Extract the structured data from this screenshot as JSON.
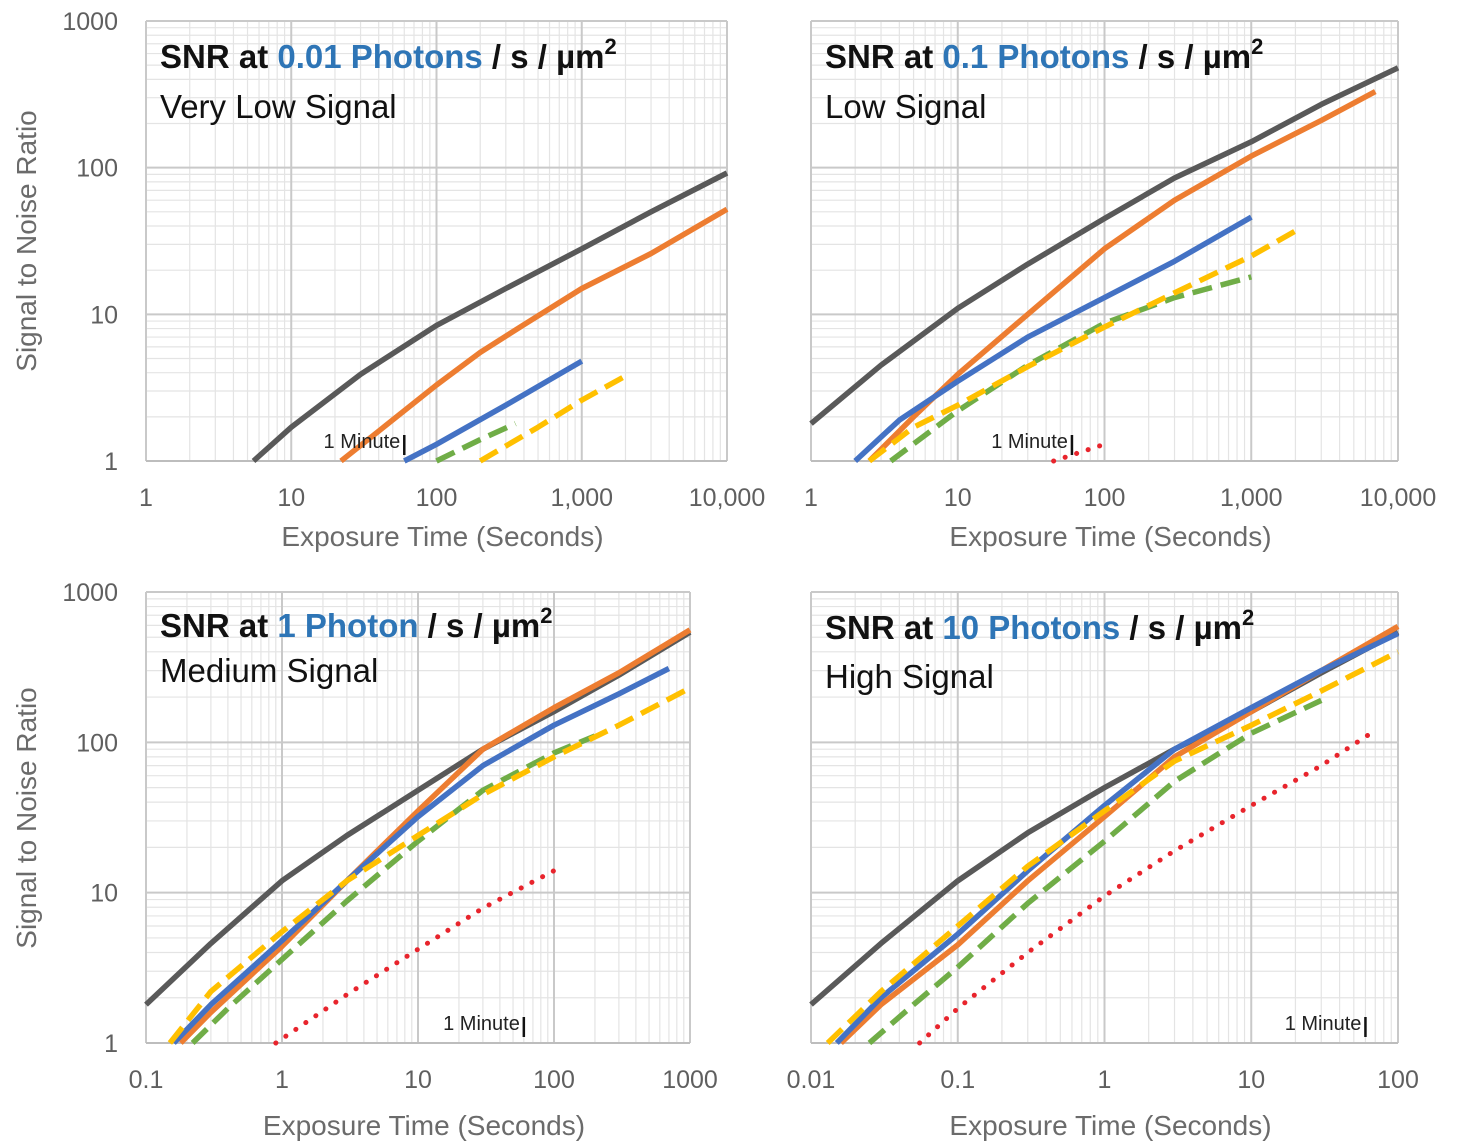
{
  "chart_data": [
    {
      "type": "line",
      "title": {
        "prefix": "SNR at ",
        "highlight": "0.01 Photons",
        "suffix": " / s / µm",
        "sup": "2"
      },
      "subtitle": "Very Low Signal",
      "xlabel": "Exposure Time (Seconds)",
      "ylabel": "Signal to Noise Ratio",
      "x_scale": "log",
      "y_scale": "log",
      "xlim": [
        1,
        10000
      ],
      "ylim": [
        1,
        1000
      ],
      "x_ticks": [
        1,
        10,
        100,
        1000,
        10000
      ],
      "x_tick_labels": [
        "1",
        "10",
        "100",
        "1,000",
        "10,000"
      ],
      "y_ticks": [
        1,
        10,
        100,
        1000
      ],
      "y_tick_labels": [
        "1",
        "10",
        "100",
        "1000"
      ],
      "grid": true,
      "annotation": {
        "label": "1 Minute",
        "x": 60
      },
      "series": [
        {
          "color": "#595959",
          "style": "solid",
          "x": [
            5.5,
            10,
            30,
            100,
            300,
            1000,
            3000,
            10000
          ],
          "y": [
            1,
            1.7,
            3.9,
            8.4,
            15,
            28,
            50,
            92
          ]
        },
        {
          "color": "#ed7d31",
          "style": "solid",
          "x": [
            22,
            40,
            100,
            200,
            400,
            1000,
            3000,
            10000
          ],
          "y": [
            1,
            1.6,
            3.3,
            5.5,
            8.5,
            15,
            26,
            52
          ]
        },
        {
          "color": "#4472c4",
          "style": "solid",
          "x": [
            60,
            100,
            300,
            1000
          ],
          "y": [
            1,
            1.3,
            2.4,
            4.8
          ]
        },
        {
          "color": "#70ad47",
          "style": "dashed",
          "x": [
            100,
            200,
            350
          ],
          "y": [
            1,
            1.4,
            1.8
          ]
        },
        {
          "color": "#ffc000",
          "style": "dashed",
          "x": [
            200,
            500,
            1000,
            2000
          ],
          "y": [
            1,
            1.7,
            2.6,
            3.8
          ]
        }
      ]
    },
    {
      "type": "line",
      "title": {
        "prefix": "SNR at ",
        "highlight": "0.1 Photons",
        "suffix": " / s / µm",
        "sup": "2"
      },
      "subtitle": "Low Signal",
      "xlabel": "Exposure Time (Seconds)",
      "ylabel": "",
      "x_scale": "log",
      "y_scale": "log",
      "xlim": [
        1,
        10000
      ],
      "ylim": [
        1,
        1000
      ],
      "x_ticks": [
        1,
        10,
        100,
        1000,
        10000
      ],
      "x_tick_labels": [
        "1",
        "10",
        "100",
        "1,000",
        "10,000"
      ],
      "y_ticks": [
        1,
        10,
        100,
        1000
      ],
      "y_tick_labels": [],
      "grid": true,
      "annotation": {
        "label": "1 Minute",
        "x": 60
      },
      "series": [
        {
          "color": "#595959",
          "style": "solid",
          "x": [
            1,
            3,
            10,
            30,
            100,
            300,
            1000,
            3000,
            10000
          ],
          "y": [
            1.8,
            4.5,
            11,
            22,
            45,
            85,
            150,
            270,
            480
          ]
        },
        {
          "color": "#ed7d31",
          "style": "solid",
          "x": [
            2.5,
            5,
            10,
            30,
            100,
            300,
            1000,
            3000,
            7000
          ],
          "y": [
            1,
            2,
            3.9,
            10,
            28,
            60,
            120,
            210,
            330
          ]
        },
        {
          "color": "#4472c4",
          "style": "solid",
          "x": [
            2,
            4,
            10,
            30,
            100,
            300,
            1000
          ],
          "y": [
            1,
            1.9,
            3.5,
            7,
            13,
            23,
            46
          ]
        },
        {
          "color": "#70ad47",
          "style": "dashed",
          "x": [
            3.5,
            6,
            10,
            30,
            100,
            300,
            1000
          ],
          "y": [
            1,
            1.5,
            2.2,
            4.5,
            8.7,
            13,
            18
          ]
        },
        {
          "color": "#ffc000",
          "style": "dashed",
          "x": [
            2.5,
            5,
            10,
            30,
            100,
            300,
            1000,
            2000
          ],
          "y": [
            1,
            1.7,
            2.4,
            4.4,
            8.2,
            14,
            25,
            37
          ]
        },
        {
          "color": "#e8242c",
          "style": "dotted",
          "x": [
            45,
            100
          ],
          "y": [
            1,
            1.3
          ]
        }
      ]
    },
    {
      "type": "line",
      "title": {
        "prefix": "SNR at ",
        "highlight": "1 Photon",
        "suffix": " / s / µm",
        "sup": "2"
      },
      "subtitle": "Medium Signal",
      "xlabel": "Exposure Time (Seconds)",
      "ylabel": "Signal to Noise Ratio",
      "x_scale": "log",
      "y_scale": "log",
      "xlim": [
        0.1,
        1000
      ],
      "ylim": [
        1,
        1000
      ],
      "x_ticks": [
        0.1,
        1,
        10,
        100,
        1000
      ],
      "x_tick_labels": [
        "0.1",
        "1",
        "10",
        "100",
        "1000"
      ],
      "y_ticks": [
        1,
        10,
        100,
        1000
      ],
      "y_tick_labels": [
        "1",
        "10",
        "100",
        "1000"
      ],
      "grid": true,
      "annotation": {
        "label": "1 Minute",
        "x": 60
      },
      "series": [
        {
          "color": "#595959",
          "style": "solid",
          "x": [
            0.1,
            0.3,
            1,
            3,
            10,
            30,
            100,
            300,
            1000
          ],
          "y": [
            1.8,
            4.6,
            12,
            24,
            48,
            90,
            160,
            280,
            540
          ]
        },
        {
          "color": "#ed7d31",
          "style": "solid",
          "x": [
            0.18,
            0.3,
            1,
            3,
            10,
            30,
            100,
            300,
            1000
          ],
          "y": [
            1,
            1.6,
            4.4,
            12,
            35,
            90,
            170,
            290,
            560
          ]
        },
        {
          "color": "#4472c4",
          "style": "solid",
          "x": [
            0.16,
            0.3,
            1,
            3,
            10,
            30,
            100,
            300,
            700
          ],
          "y": [
            1,
            1.8,
            4.8,
            12,
            32,
            70,
            130,
            210,
            310
          ]
        },
        {
          "color": "#70ad47",
          "style": "dashed",
          "x": [
            0.22,
            0.4,
            1,
            3,
            10,
            30,
            100,
            200
          ],
          "y": [
            1,
            1.7,
            3.6,
            8.8,
            22,
            48,
            85,
            110
          ]
        },
        {
          "color": "#ffc000",
          "style": "dashed",
          "x": [
            0.15,
            0.3,
            1,
            3,
            10,
            30,
            100,
            300,
            1000
          ],
          "y": [
            1,
            2.2,
            5.5,
            12,
            24,
            45,
            80,
            130,
            230
          ]
        },
        {
          "color": "#e8242c",
          "style": "dotted",
          "x": [
            0.9,
            3,
            10,
            30,
            100
          ],
          "y": [
            1,
            2.1,
            4.2,
            7.9,
            14
          ]
        }
      ]
    },
    {
      "type": "line",
      "title": {
        "prefix": "SNR at ",
        "highlight": "10 Photons",
        "suffix": " / s / µm",
        "sup": "2"
      },
      "subtitle": "High Signal",
      "xlabel": "Exposure Time (Seconds)",
      "ylabel": "",
      "x_scale": "log",
      "y_scale": "log",
      "xlim": [
        0.01,
        100
      ],
      "ylim": [
        1,
        1000
      ],
      "x_ticks": [
        0.01,
        0.1,
        1,
        10,
        100
      ],
      "x_tick_labels": [
        "0.01",
        "0.1",
        "1",
        "10",
        "100"
      ],
      "y_ticks": [
        1,
        10,
        100,
        1000
      ],
      "y_tick_labels": [],
      "grid": true,
      "annotation": {
        "label": "1 Minute",
        "x": 60
      },
      "series": [
        {
          "color": "#595959",
          "style": "solid",
          "x": [
            0.01,
            0.03,
            0.1,
            0.3,
            1,
            3,
            10,
            30,
            100
          ],
          "y": [
            1.8,
            4.6,
            12,
            25,
            50,
            90,
            160,
            290,
            540
          ]
        },
        {
          "color": "#ed7d31",
          "style": "solid",
          "x": [
            0.016,
            0.03,
            0.1,
            0.3,
            1,
            3,
            10,
            30,
            100
          ],
          "y": [
            1,
            1.8,
            4.5,
            12,
            32,
            80,
            160,
            300,
            590
          ]
        },
        {
          "color": "#4472c4",
          "style": "solid",
          "x": [
            0.015,
            0.03,
            0.1,
            0.3,
            1,
            3,
            10,
            30,
            100
          ],
          "y": [
            1,
            2,
            5.3,
            14,
            38,
            90,
            170,
            300,
            530
          ]
        },
        {
          "color": "#70ad47",
          "style": "dashed",
          "x": [
            0.025,
            0.05,
            0.1,
            0.3,
            1,
            3,
            10,
            30
          ],
          "y": [
            1,
            1.8,
            3.2,
            8.5,
            22,
            55,
            115,
            190
          ]
        },
        {
          "color": "#ffc000",
          "style": "dashed",
          "x": [
            0.013,
            0.03,
            0.1,
            0.3,
            1,
            3,
            10,
            30,
            100
          ],
          "y": [
            1,
            2.2,
            6,
            15,
            35,
            75,
            130,
            220,
            400
          ]
        },
        {
          "color": "#e8242c",
          "style": "dotted",
          "x": [
            0.055,
            0.1,
            0.3,
            1,
            3,
            10,
            30,
            70
          ],
          "y": [
            1,
            1.7,
            4,
            9.5,
            19,
            38,
            70,
            120
          ]
        }
      ]
    }
  ]
}
